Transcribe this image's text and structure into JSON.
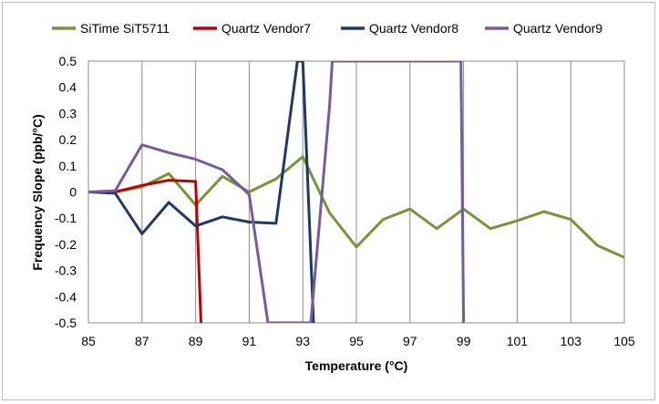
{
  "chart_data": {
    "type": "line",
    "title": "",
    "xlabel": "Temperature (°C)",
    "ylabel": "Frequency Slope (ppb/°C)",
    "xlim": [
      85,
      105
    ],
    "ylim": [
      -0.5,
      0.5
    ],
    "x_ticks": [
      "85",
      "87",
      "89",
      "91",
      "93",
      "95",
      "97",
      "99",
      "101",
      "103",
      "105"
    ],
    "y_ticks": [
      "0.5",
      "0.4",
      "0.3",
      "0.2",
      "0.1",
      "0",
      "-0.1",
      "-0.2",
      "-0.3",
      "-0.4",
      "-0.5"
    ],
    "grid": "vertical",
    "legend_position": "top",
    "series": [
      {
        "name": "SiTime SiT5711",
        "color": "#77933c",
        "x": [
          85,
          86,
          87,
          88,
          89,
          90,
          91,
          92,
          93,
          94,
          95,
          96,
          97,
          98,
          99,
          100,
          101,
          102,
          103,
          104,
          105
        ],
        "y": [
          0,
          0,
          0.02,
          0.07,
          -0.05,
          0.06,
          0,
          0.05,
          0.135,
          -0.08,
          -0.21,
          -0.105,
          -0.065,
          -0.14,
          -0.065,
          -0.14,
          -0.11,
          -0.075,
          -0.105,
          -0.205,
          -0.25
        ]
      },
      {
        "name": "Quartz Vendor7",
        "color": "#c00000",
        "x": [
          85,
          86,
          87,
          88,
          89.0,
          89.2
        ],
        "y": [
          0,
          0,
          0.025,
          0.045,
          0.04,
          -0.5
        ]
      },
      {
        "name": "Quartz Vendor8",
        "color": "#1f3864",
        "x": [
          85,
          86,
          87,
          88,
          89,
          90,
          91,
          92,
          92.8,
          93.0,
          93.4
        ],
        "y": [
          0,
          -0.005,
          -0.16,
          -0.04,
          -0.13,
          -0.095,
          -0.115,
          -0.12,
          0.5,
          0.5,
          -0.5
        ]
      },
      {
        "name": "Quartz Vendor9",
        "color": "#7a5a9a",
        "x": [
          85,
          86,
          87,
          88,
          89,
          90,
          91,
          91.7,
          93.3,
          94.0,
          94.1,
          98.9,
          99.0
        ],
        "y": [
          0,
          0.005,
          0.18,
          0.15,
          0.125,
          0.085,
          -0.01,
          -0.5,
          -0.5,
          0.33,
          0.5,
          0.5,
          -0.5
        ]
      }
    ]
  }
}
